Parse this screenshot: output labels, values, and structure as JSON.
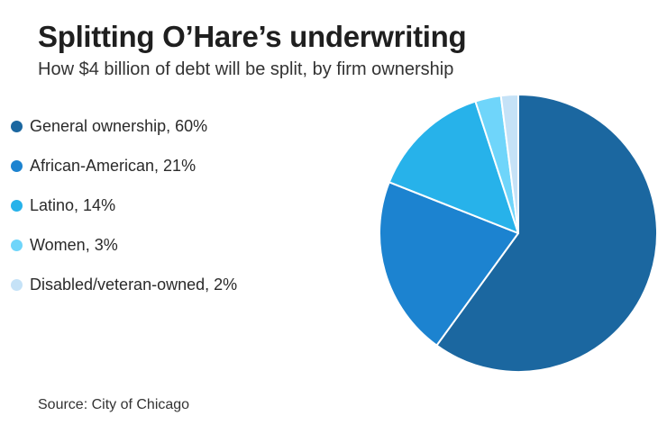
{
  "header": {
    "title": "Splitting O’Hare’s underwriting",
    "subtitle": "How $4 billion of debt will be split, by firm ownership"
  },
  "footer": {
    "source": "Source: City of Chicago"
  },
  "chart_data": {
    "type": "pie",
    "legend_position": "left",
    "start_angle": "12 o'clock",
    "direction": "clockwise",
    "slices": [
      {
        "label": "General ownership, 60%",
        "name": "General ownership",
        "value": 60,
        "color": "#1b67a0"
      },
      {
        "label": "African-American, 21%",
        "name": "African-American",
        "value": 21,
        "color": "#1c83d0"
      },
      {
        "label": "Latino, 14%",
        "name": "Latino",
        "value": 14,
        "color": "#27b2ea"
      },
      {
        "label": "Women, 3%",
        "name": "Women",
        "value": 3,
        "color": "#6fd5fa"
      },
      {
        "label": "Disabled/veteran-owned, 2%",
        "name": "Disabled/veteran-owned",
        "value": 2,
        "color": "#c5e2f7"
      }
    ]
  }
}
